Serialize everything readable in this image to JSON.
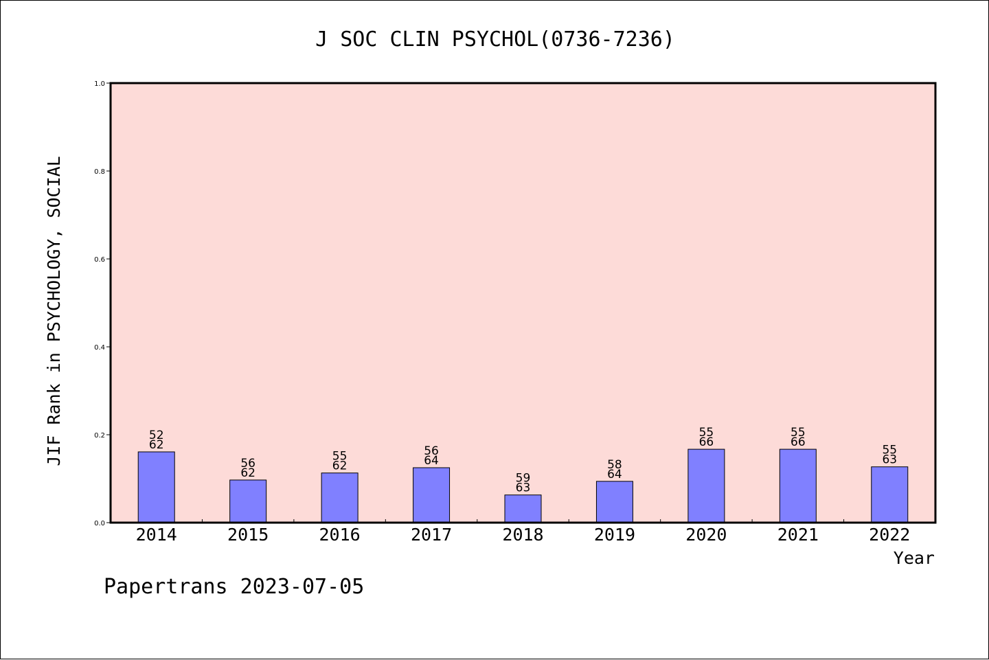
{
  "chart_data": {
    "type": "bar",
    "title": "J SOC CLIN PSYCHOL(0736-7236)",
    "xlabel": "Year",
    "ylabel": "JIF Rank in PSYCHOLOGY, SOCIAL",
    "ylim": [
      0,
      1.0
    ],
    "yticks": [
      "0.0",
      "0.2",
      "0.4",
      "0.6",
      "0.8",
      "1.0"
    ],
    "categories": [
      "2014",
      "2015",
      "2016",
      "2017",
      "2018",
      "2019",
      "2020",
      "2021",
      "2022"
    ],
    "series": [
      {
        "values": [
          0.161,
          0.097,
          0.113,
          0.125,
          0.063,
          0.094,
          0.167,
          0.167,
          0.127
        ],
        "rank": [
          "52",
          "56",
          "55",
          "56",
          "59",
          "58",
          "55",
          "55",
          "55"
        ],
        "total": [
          "62",
          "62",
          "62",
          "64",
          "63",
          "64",
          "66",
          "66",
          "63"
        ]
      }
    ],
    "grid": false,
    "colors": {
      "plot_background": "#fddbd8",
      "bar_fill": "#8080ff",
      "bar_stroke": "#000000"
    }
  },
  "footer": {
    "text": "Papertrans 2023-07-05"
  }
}
